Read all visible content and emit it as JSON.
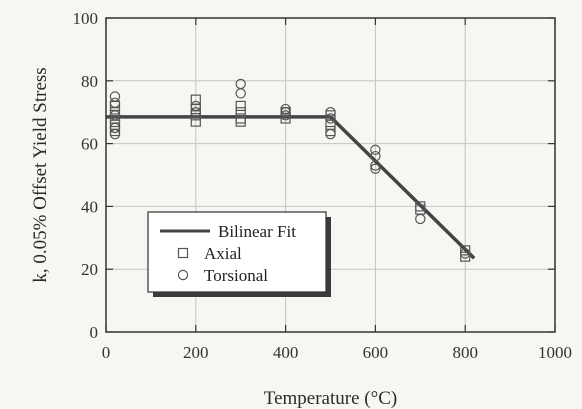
{
  "chart_data": {
    "type": "scatter",
    "title": "",
    "xlabel": "Temperature (°C)",
    "ylabel": "k, 0.05% Offset Yield Stress",
    "xlim": [
      0,
      1000
    ],
    "ylim": [
      0,
      100
    ],
    "x_ticks": [
      0,
      200,
      400,
      600,
      800,
      1000
    ],
    "y_ticks": [
      0,
      20,
      40,
      60,
      80,
      100
    ],
    "grid": true,
    "legend_position": "lower-left",
    "colors": {
      "line": "#444444",
      "marker": "#555555",
      "grid": "#c4c4c4",
      "axis": "#333333"
    },
    "series": [
      {
        "name": "Bilinear Fit",
        "kind": "line",
        "x": [
          0,
          500,
          820
        ],
        "y": [
          68.5,
          68.5,
          23.5
        ]
      },
      {
        "name": "Axial",
        "kind": "marker",
        "marker": "square",
        "x": [
          20,
          20,
          20,
          20,
          20,
          200,
          200,
          200,
          200,
          300,
          300,
          300,
          300,
          400,
          400,
          500,
          500,
          500,
          700,
          700,
          800,
          800
        ],
        "y": [
          70,
          68,
          66,
          64,
          72,
          74,
          71,
          69,
          67,
          72,
          70,
          68,
          67,
          70,
          68,
          69,
          66,
          64,
          40,
          39,
          26,
          24
        ]
      },
      {
        "name": "Torsional",
        "kind": "marker",
        "marker": "circle",
        "x": [
          20,
          20,
          20,
          20,
          20,
          200,
          200,
          300,
          300,
          400,
          400,
          400,
          500,
          500,
          500,
          600,
          600,
          600,
          600,
          700,
          800
        ],
        "y": [
          75,
          73,
          69,
          65,
          63,
          72,
          70,
          79,
          76,
          71,
          70,
          69,
          70,
          68,
          63,
          58,
          56,
          53,
          52,
          36,
          25
        ]
      }
    ]
  }
}
